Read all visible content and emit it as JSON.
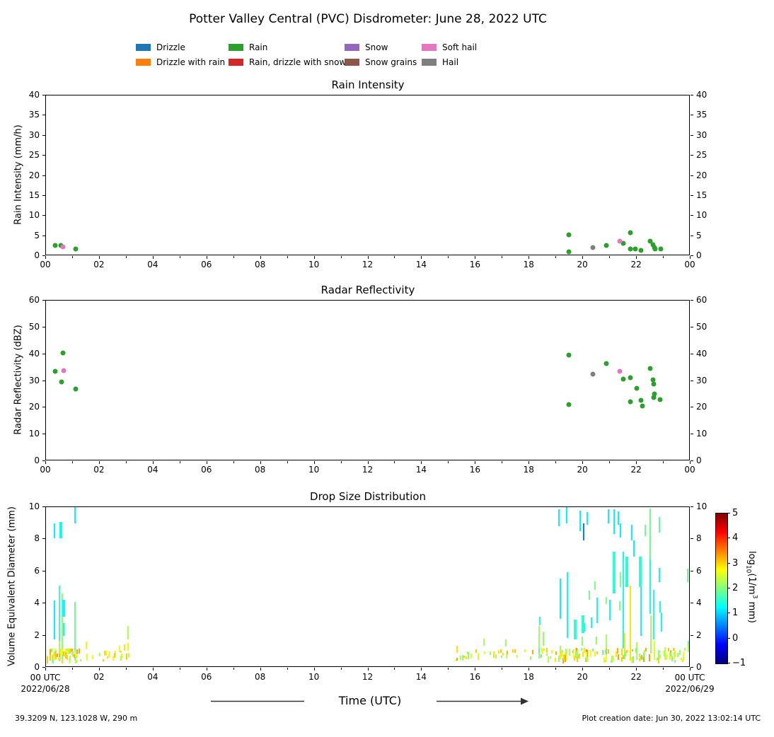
{
  "title": "Potter Valley Central (PVC) Disdrometer: June 28, 2022 UTC",
  "legend": {
    "items": [
      {
        "label": "Drizzle",
        "color": "#1f77b4",
        "col": 0,
        "row": 0
      },
      {
        "label": "Drizzle with rain",
        "color": "#ff7f0e",
        "col": 0,
        "row": 1
      },
      {
        "label": "Rain",
        "color": "#2ca02c",
        "col": 1,
        "row": 0
      },
      {
        "label": "Rain, drizzle with snow",
        "color": "#d62728",
        "col": 1,
        "row": 1
      },
      {
        "label": "Snow",
        "color": "#9467bd",
        "col": 2,
        "row": 0
      },
      {
        "label": "Snow grains",
        "color": "#8c564b",
        "col": 2,
        "row": 1
      },
      {
        "label": "Soft hail",
        "color": "#e377c2",
        "col": 3,
        "row": 0
      },
      {
        "label": "Hail",
        "color": "#7f7f7f",
        "col": 3,
        "row": 1
      }
    ]
  },
  "time_axis": {
    "major_labels": [
      "00",
      "02",
      "04",
      "06",
      "08",
      "10",
      "12",
      "14",
      "16",
      "18",
      "20",
      "22",
      "00"
    ],
    "left_label": "00 UTC",
    "right_label": "00 UTC",
    "left_date": "2022/06/28",
    "right_date": "2022/06/29"
  },
  "xlabel": {
    "text": "Time (UTC)"
  },
  "footer": {
    "location": "39.3209 N, 123.1028 W, 290 m",
    "creation": "Plot creation date: Jun 30, 2022 13:02:14 UTC"
  },
  "chart_data": [
    {
      "type": "scatter",
      "title": "Rain Intensity",
      "ylabel": "Rain Intensity (mm/h)",
      "xlim": [
        0,
        24
      ],
      "ylim": [
        0,
        40
      ],
      "yticks": [
        0,
        5,
        10,
        15,
        20,
        25,
        30,
        35,
        40
      ],
      "grid": false,
      "series": [
        {
          "name": "Rain",
          "color": "#2ca02c",
          "points": [
            [
              0.35,
              2.4
            ],
            [
              0.55,
              2.4
            ],
            [
              1.1,
              1.5
            ],
            [
              19.5,
              5.0
            ],
            [
              19.5,
              0.8
            ],
            [
              20.9,
              2.4
            ],
            [
              21.55,
              2.8
            ],
            [
              21.8,
              5.6
            ],
            [
              21.82,
              1.35
            ],
            [
              22.0,
              1.5
            ],
            [
              22.2,
              1.05
            ],
            [
              22.55,
              3.3
            ],
            [
              22.65,
              2.5
            ],
            [
              22.7,
              1.8
            ],
            [
              22.73,
              1.4
            ],
            [
              22.95,
              1.45
            ]
          ]
        },
        {
          "name": "Soft hail",
          "color": "#e377c2",
          "points": [
            [
              0.63,
              1.9
            ],
            [
              21.4,
              3.4
            ]
          ]
        },
        {
          "name": "Hail",
          "color": "#7f7f7f",
          "points": [
            [
              20.4,
              1.8
            ]
          ]
        }
      ]
    },
    {
      "type": "scatter",
      "title": "Radar Reflectivity",
      "ylabel": "Radar Reflectivity (dBZ)",
      "xlim": [
        0,
        24
      ],
      "ylim": [
        0,
        60
      ],
      "yticks": [
        0,
        10,
        20,
        30,
        40,
        50,
        60
      ],
      "grid": false,
      "series": [
        {
          "name": "Rain",
          "color": "#2ca02c",
          "points": [
            [
              0.35,
              33.3
            ],
            [
              0.58,
              29.3
            ],
            [
              0.63,
              40.2
            ],
            [
              1.1,
              26.7
            ],
            [
              19.5,
              39.5
            ],
            [
              19.5,
              20.7
            ],
            [
              20.9,
              36.2
            ],
            [
              21.55,
              30.4
            ],
            [
              21.8,
              31.0
            ],
            [
              21.82,
              21.9
            ],
            [
              22.05,
              26.9
            ],
            [
              22.2,
              22.4
            ],
            [
              22.27,
              20.3
            ],
            [
              22.55,
              34.3
            ],
            [
              22.65,
              30.1
            ],
            [
              22.68,
              28.6
            ],
            [
              22.7,
              24.8
            ],
            [
              22.69,
              23.6
            ],
            [
              22.93,
              22.8
            ]
          ]
        },
        {
          "name": "Soft hail",
          "color": "#e377c2",
          "points": [
            [
              0.67,
              33.6
            ],
            [
              21.4,
              33.3
            ]
          ]
        },
        {
          "name": "Hail",
          "color": "#7f7f7f",
          "points": [
            [
              20.4,
              32.2
            ]
          ]
        }
      ]
    },
    {
      "type": "heatmap",
      "title": "Drop Size Distribution",
      "ylabel": "Volume Equivalent Diameter (mm)",
      "xlim": [
        0,
        24
      ],
      "ylim": [
        0,
        10
      ],
      "yticks": [
        0,
        2,
        4,
        6,
        8,
        10
      ],
      "colorbar": {
        "range": [
          -1,
          5
        ],
        "ticks": [
          5,
          4,
          3,
          2,
          1,
          0,
          -1
        ],
        "label_prefix": "log",
        "label_sub": "10",
        "label_mid": "(1/m",
        "label_sup": "3",
        "label_suffix": " mm)",
        "cmap": "jet"
      },
      "segments": [
        [
          0.32,
          1.7,
          4.15,
          1.2
        ],
        [
          0.32,
          8.05,
          9.0,
          1.2
        ],
        [
          0.5,
          1.6,
          5.05,
          1.6
        ],
        [
          0.5,
          0.3,
          1.6,
          2.2
        ],
        [
          0.55,
          8.05,
          9.05,
          1.3,
          2
        ],
        [
          0.62,
          0.35,
          4.6,
          2.1
        ],
        [
          0.66,
          3.1,
          4.2,
          1.3,
          2
        ],
        [
          0.66,
          1.9,
          2.7,
          1.3
        ],
        [
          1.08,
          9.0,
          10.0,
          1.2
        ],
        [
          1.08,
          0.4,
          4.05,
          1.9
        ],
        [
          1.5,
          1.05,
          1.55,
          2.6
        ],
        [
          1.52,
          0.35,
          0.8,
          2.6
        ],
        [
          2.6,
          0.55,
          1.0,
          2.8
        ],
        [
          2.75,
          0.9,
          1.3,
          2.7
        ],
        [
          2.92,
          1.0,
          1.4,
          2.9
        ],
        [
          3.05,
          1.7,
          2.55,
          2.3
        ],
        [
          3.05,
          1.0,
          1.45,
          2.8
        ],
        [
          3.08,
          0.55,
          0.85,
          2.5
        ],
        [
          15.35,
          0.85,
          1.3,
          2.9
        ],
        [
          16.35,
          1.3,
          1.75,
          2.2
        ],
        [
          16.7,
          0.55,
          0.95,
          2.9
        ],
        [
          17.15,
          1.25,
          1.7,
          2.2
        ],
        [
          17.2,
          0.5,
          0.8,
          2.4
        ],
        [
          18.4,
          0.5,
          2.55,
          2.2
        ],
        [
          18.42,
          2.6,
          3.1,
          1.4
        ],
        [
          18.55,
          1.3,
          2.2,
          2.1
        ],
        [
          19.15,
          8.8,
          9.85,
          1.2
        ],
        [
          19.2,
          3.0,
          5.5,
          1.2
        ],
        [
          19.2,
          0.6,
          1.3,
          2.2
        ],
        [
          19.43,
          9.0,
          10.0,
          1.2
        ],
        [
          19.47,
          1.8,
          5.9,
          1.3
        ],
        [
          19.74,
          1.7,
          2.95,
          1.5,
          2
        ],
        [
          19.78,
          0.5,
          1.1,
          2.5
        ],
        [
          19.93,
          8.5,
          9.8,
          1.2
        ],
        [
          20.0,
          1.3,
          1.85,
          2.1
        ],
        [
          20.03,
          2.1,
          3.2,
          1.5,
          2
        ],
        [
          20.07,
          7.9,
          9.0,
          0.5
        ],
        [
          20.1,
          2.2,
          2.7,
          1.4
        ],
        [
          20.2,
          8.9,
          9.7,
          1.2
        ],
        [
          20.27,
          4.2,
          4.75,
          1.9
        ],
        [
          20.35,
          2.4,
          3.05,
          1.3
        ],
        [
          20.5,
          4.8,
          5.35,
          2.0
        ],
        [
          20.57,
          2.7,
          4.3,
          1.3
        ],
        [
          20.55,
          1.4,
          1.85,
          2.1
        ],
        [
          20.9,
          3.9,
          4.35,
          2.0
        ],
        [
          20.9,
          0.5,
          2.0,
          2.2
        ],
        [
          21.0,
          9.0,
          9.85,
          1.2
        ],
        [
          21.05,
          2.9,
          4.2,
          1.3
        ],
        [
          21.2,
          8.3,
          9.85,
          1.2
        ],
        [
          21.2,
          4.6,
          7.2,
          1.5,
          2
        ],
        [
          21.35,
          8.9,
          9.75,
          1.2
        ],
        [
          21.4,
          3.5,
          4.1,
          2.0
        ],
        [
          21.45,
          8.1,
          9.0,
          1.2
        ],
        [
          21.45,
          5.0,
          5.9,
          2.0
        ],
        [
          21.54,
          1.1,
          6.7,
          1.4
        ],
        [
          21.55,
          6.6,
          7.2,
          1.3
        ],
        [
          21.6,
          0.5,
          2.1,
          2.9
        ],
        [
          21.67,
          5.0,
          6.9,
          1.5,
          2
        ],
        [
          21.82,
          0.35,
          5.05,
          2.9
        ],
        [
          21.85,
          7.9,
          8.9,
          1.2
        ],
        [
          21.93,
          6.9,
          7.9,
          1.2
        ],
        [
          22.05,
          0.4,
          1.5,
          2.3
        ],
        [
          22.18,
          5.0,
          6.9,
          1.5,
          2
        ],
        [
          22.2,
          1.9,
          5.0,
          1.3
        ],
        [
          22.37,
          8.2,
          8.9,
          1.9
        ],
        [
          22.55,
          6.7,
          9.9,
          1.9
        ],
        [
          22.55,
          3.3,
          6.7,
          1.4
        ],
        [
          22.57,
          0.8,
          3.2,
          2.2
        ],
        [
          22.68,
          1.7,
          4.8,
          1.5
        ],
        [
          22.7,
          0.4,
          1.6,
          2.5
        ],
        [
          22.88,
          8.4,
          9.4,
          1.8
        ],
        [
          22.9,
          5.3,
          6.2,
          1.3
        ],
        [
          22.93,
          3.4,
          4.1,
          1.3
        ],
        [
          22.97,
          2.2,
          3.4,
          1.3
        ],
        [
          23.1,
          0.4,
          1.2,
          2.4
        ],
        [
          23.3,
          0.4,
          0.9,
          2.6
        ],
        [
          23.95,
          5.3,
          6.15,
          1.9
        ],
        [
          23.97,
          0.9,
          1.6,
          2.0
        ]
      ],
      "bands": [
        {
          "x0": 0.05,
          "x1": 1.35,
          "y0": 0.18,
          "y1": 0.95,
          "count": 60,
          "vmin": 1.8,
          "vmax": 3.3,
          "seed": 7
        },
        {
          "x0": 1.4,
          "x1": 3.3,
          "y0": 0.3,
          "y1": 0.85,
          "count": 16,
          "vmin": 2.2,
          "vmax": 3.2,
          "seed": 11
        },
        {
          "x0": 15.2,
          "x1": 18.4,
          "y0": 0.3,
          "y1": 0.9,
          "count": 26,
          "vmin": 2.0,
          "vmax": 3.4,
          "seed": 13
        },
        {
          "x0": 18.4,
          "x1": 23.98,
          "y0": 0.18,
          "y1": 1.0,
          "count": 120,
          "vmin": 1.8,
          "vmax": 3.4,
          "seed": 17
        }
      ]
    }
  ]
}
